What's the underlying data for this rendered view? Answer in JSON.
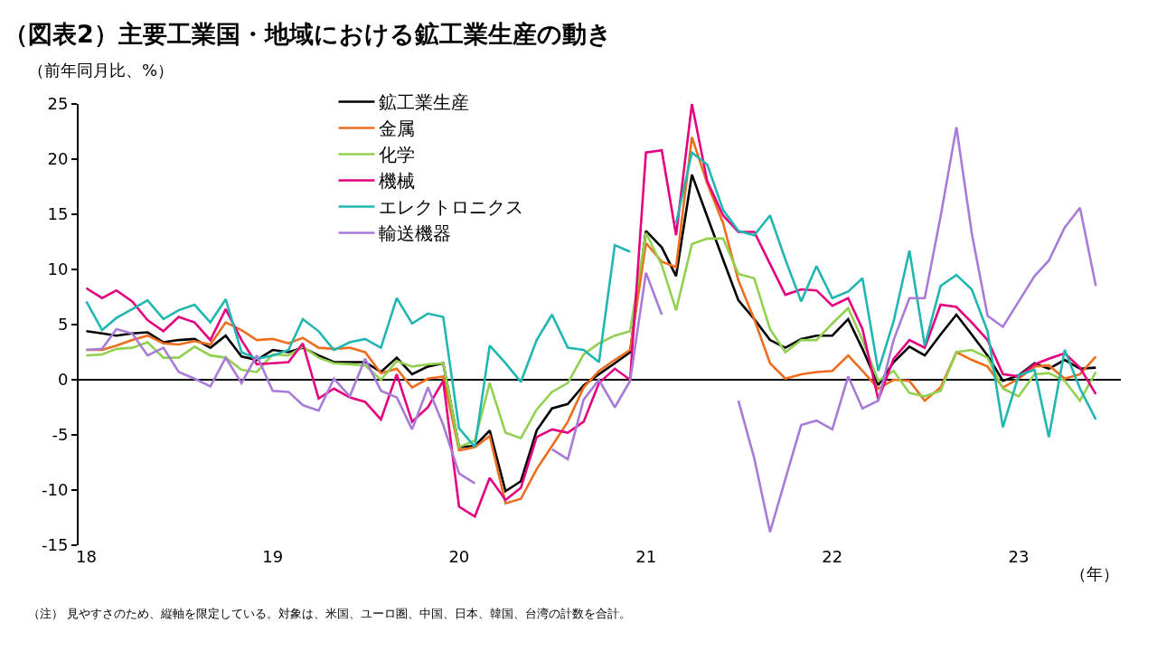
{
  "chart_data": {
    "type": "line",
    "title": "（図表2）主要工業国・地域における鉱工業生産の動き",
    "ylabel": "（前年同月比、%）",
    "xlabel": "（年）",
    "annotations": [
      "（注） 見やすさのため、縦軸を限定している。対象は、米国、ユーロ圏、中国、日本、韓国、台湾の計数を合計。"
    ],
    "x": [
      "2018-01",
      "2018-02",
      "2018-03",
      "2018-04",
      "2018-05",
      "2018-06",
      "2018-07",
      "2018-08",
      "2018-09",
      "2018-10",
      "2018-11",
      "2018-12",
      "2019-01",
      "2019-02",
      "2019-03",
      "2019-04",
      "2019-05",
      "2019-06",
      "2019-07",
      "2019-08",
      "2019-09",
      "2019-10",
      "2019-11",
      "2019-12",
      "2020-01",
      "2020-02",
      "2020-03",
      "2020-04",
      "2020-05",
      "2020-06",
      "2020-07",
      "2020-08",
      "2020-09",
      "2020-10",
      "2020-11",
      "2020-12",
      "2021-01",
      "2021-02",
      "2021-03",
      "2021-04",
      "2021-05",
      "2021-06",
      "2021-07",
      "2021-08",
      "2021-09",
      "2021-10",
      "2021-11",
      "2021-12",
      "2022-01",
      "2022-02",
      "2022-03",
      "2022-04",
      "2022-05",
      "2022-06",
      "2022-07",
      "2022-08",
      "2022-09",
      "2022-10",
      "2022-11",
      "2022-12",
      "2023-01",
      "2023-02",
      "2023-03",
      "2023-04",
      "2023-05",
      "2023-06"
    ],
    "series": [
      {
        "name": "鉱工業生産",
        "color": "#000000",
        "values": [
          4.4,
          4.2,
          4.0,
          4.2,
          4.3,
          3.4,
          3.6,
          3.7,
          2.9,
          4.0,
          2.1,
          1.8,
          2.7,
          2.5,
          2.9,
          2.2,
          1.6,
          1.6,
          1.6,
          0.7,
          2.0,
          0.5,
          1.2,
          1.5,
          -6.1,
          -6.0,
          -4.6,
          -10.1,
          -9.2,
          -4.6,
          -2.6,
          -2.2,
          -0.5,
          0.5,
          1.5,
          2.5,
          13.5,
          12.0,
          9.4,
          18.6,
          14.8,
          10.9,
          7.2,
          5.5,
          3.6,
          2.9,
          3.7,
          4.0,
          4.0,
          5.5,
          2.8,
          -0.5,
          1.6,
          3.0,
          2.2,
          4.1,
          5.9,
          4.1,
          2.2,
          -0.1,
          0.4,
          1.5,
          1.0,
          1.8,
          1.0,
          1.1
        ]
      },
      {
        "name": "金属",
        "color": "#ed6d1f",
        "values": [
          2.7,
          2.7,
          3.1,
          3.6,
          4.0,
          3.3,
          3.2,
          3.5,
          3.2,
          5.2,
          4.5,
          3.6,
          3.7,
          3.3,
          3.8,
          2.9,
          2.8,
          2.9,
          2.5,
          0.6,
          1.0,
          -0.7,
          0.1,
          0.3,
          -6.4,
          -6.1,
          -5.1,
          -11.2,
          -10.8,
          -8.1,
          -6.0,
          -3.8,
          -0.7,
          0.8,
          1.8,
          2.7,
          12.4,
          10.7,
          10.2,
          22.0,
          17.8,
          14.2,
          9.0,
          5.5,
          1.5,
          0.1,
          0.5,
          0.7,
          0.8,
          2.2,
          0.8,
          -0.8,
          0.0,
          -0.1,
          -1.9,
          -0.7,
          2.5,
          1.8,
          1.2,
          -0.7,
          0.1,
          1.2,
          1.3,
          0.1,
          0.5,
          2.1
        ]
      },
      {
        "name": "化学",
        "color": "#92d050",
        "values": [
          2.2,
          2.3,
          2.8,
          2.9,
          3.4,
          2.0,
          2.0,
          3.0,
          2.2,
          2.0,
          0.9,
          0.7,
          2.3,
          2.2,
          3.0,
          2.0,
          1.5,
          1.4,
          1.3,
          0.0,
          1.7,
          1.2,
          1.4,
          1.5,
          -6.1,
          -5.5,
          -0.3,
          -4.8,
          -5.3,
          -2.7,
          -1.1,
          -0.3,
          2.3,
          3.3,
          4.0,
          4.4,
          13.3,
          10.4,
          6.3,
          12.3,
          12.8,
          12.8,
          9.6,
          9.2,
          4.6,
          2.5,
          3.6,
          3.6,
          5.1,
          6.5,
          3.6,
          -0.1,
          0.8,
          -1.2,
          -1.5,
          -1.0,
          2.5,
          2.7,
          2.0,
          -0.8,
          -1.5,
          0.5,
          0.6,
          -0.1,
          -1.9,
          0.7
        ]
      },
      {
        "name": "機械",
        "color": "#e4007f",
        "values": [
          8.3,
          7.4,
          8.1,
          7.1,
          5.4,
          4.4,
          5.7,
          5.2,
          3.6,
          6.4,
          3.6,
          1.4,
          1.5,
          1.6,
          3.3,
          -1.7,
          -0.8,
          -1.6,
          -2.0,
          -3.6,
          0.5,
          -3.8,
          -2.5,
          -0.1,
          -11.5,
          -12.4,
          -8.9,
          -10.9,
          -9.8,
          -5.2,
          -4.5,
          -4.8,
          -3.8,
          -0.3,
          1.0,
          0.0,
          20.6,
          20.8,
          13.1,
          25.0,
          18.0,
          14.9,
          13.4,
          13.4,
          10.5,
          7.7,
          8.2,
          8.1,
          6.7,
          7.4,
          4.6,
          -1.8,
          1.9,
          3.6,
          2.9,
          6.8,
          6.6,
          5.2,
          3.6,
          0.5,
          0.3,
          1.4,
          1.9,
          2.4,
          1.1,
          -1.3
        ]
      },
      {
        "name": "エレクトロニクス",
        "color": "#21b6b1",
        "values": [
          7.1,
          4.5,
          5.6,
          6.4,
          7.2,
          5.5,
          6.3,
          6.8,
          5.2,
          7.3,
          2.5,
          1.9,
          2.2,
          2.7,
          5.5,
          4.4,
          2.7,
          3.4,
          3.7,
          2.9,
          7.4,
          5.1,
          6.0,
          5.7,
          -4.4,
          -6.1,
          3.1,
          1.5,
          -0.2,
          3.6,
          5.9,
          2.9,
          2.7,
          1.6,
          12.2,
          11.6,
          null,
          null,
          14.2,
          20.6,
          19.5,
          15.4,
          13.5,
          13.1,
          14.9,
          10.9,
          7.1,
          10.3,
          7.4,
          8.0,
          9.2,
          0.8,
          5.3,
          11.7,
          3.1,
          8.5,
          9.5,
          8.2,
          4.4,
          -4.3,
          0.4,
          0.9,
          -5.2,
          2.7,
          -0.8,
          -3.6
        ]
      },
      {
        "name": "輸送機器",
        "color": "#a97bd8",
        "values": [
          2.7,
          2.8,
          4.6,
          4.2,
          2.2,
          2.9,
          0.7,
          0.1,
          -0.6,
          2.0,
          -0.3,
          2.2,
          -1.0,
          -1.1,
          -2.3,
          -2.8,
          0.1,
          -1.5,
          1.9,
          -1.0,
          -1.6,
          -4.5,
          -0.7,
          -4.1,
          -8.5,
          -9.4,
          null,
          null,
          null,
          null,
          -6.3,
          -7.2,
          -1.8,
          0.0,
          -2.5,
          -0.1,
          9.7,
          5.9,
          null,
          null,
          null,
          null,
          -1.9,
          -7.1,
          -13.8,
          -9.0,
          -4.1,
          -3.7,
          -4.5,
          0.3,
          -2.6,
          -1.9,
          3.6,
          7.4,
          7.4,
          14.8,
          22.9,
          13.3,
          5.8,
          4.8,
          7.1,
          9.4,
          10.8,
          13.8,
          15.6,
          8.5
        ]
      }
    ],
    "xlim": [
      "2017-12-17",
      "2023-07-20"
    ],
    "xticks": [
      {
        "value": "2018-01",
        "label": "18"
      },
      {
        "value": "2019-01",
        "label": "19"
      },
      {
        "value": "2020-01",
        "label": "20"
      },
      {
        "value": "2021-01",
        "label": "21"
      },
      {
        "value": "2022-01",
        "label": "22"
      },
      {
        "value": "2023-01",
        "label": "23"
      }
    ],
    "ylim": [
      -15,
      25
    ],
    "yticks": [
      -15,
      -10,
      -5,
      0,
      5,
      10,
      15,
      20,
      25
    ],
    "grid": false,
    "ref_lines": [
      {
        "axis": "y",
        "value": 0,
        "color": "#000000"
      }
    ],
    "legend": "top left",
    "marker": "none",
    "line_style": "solid"
  }
}
